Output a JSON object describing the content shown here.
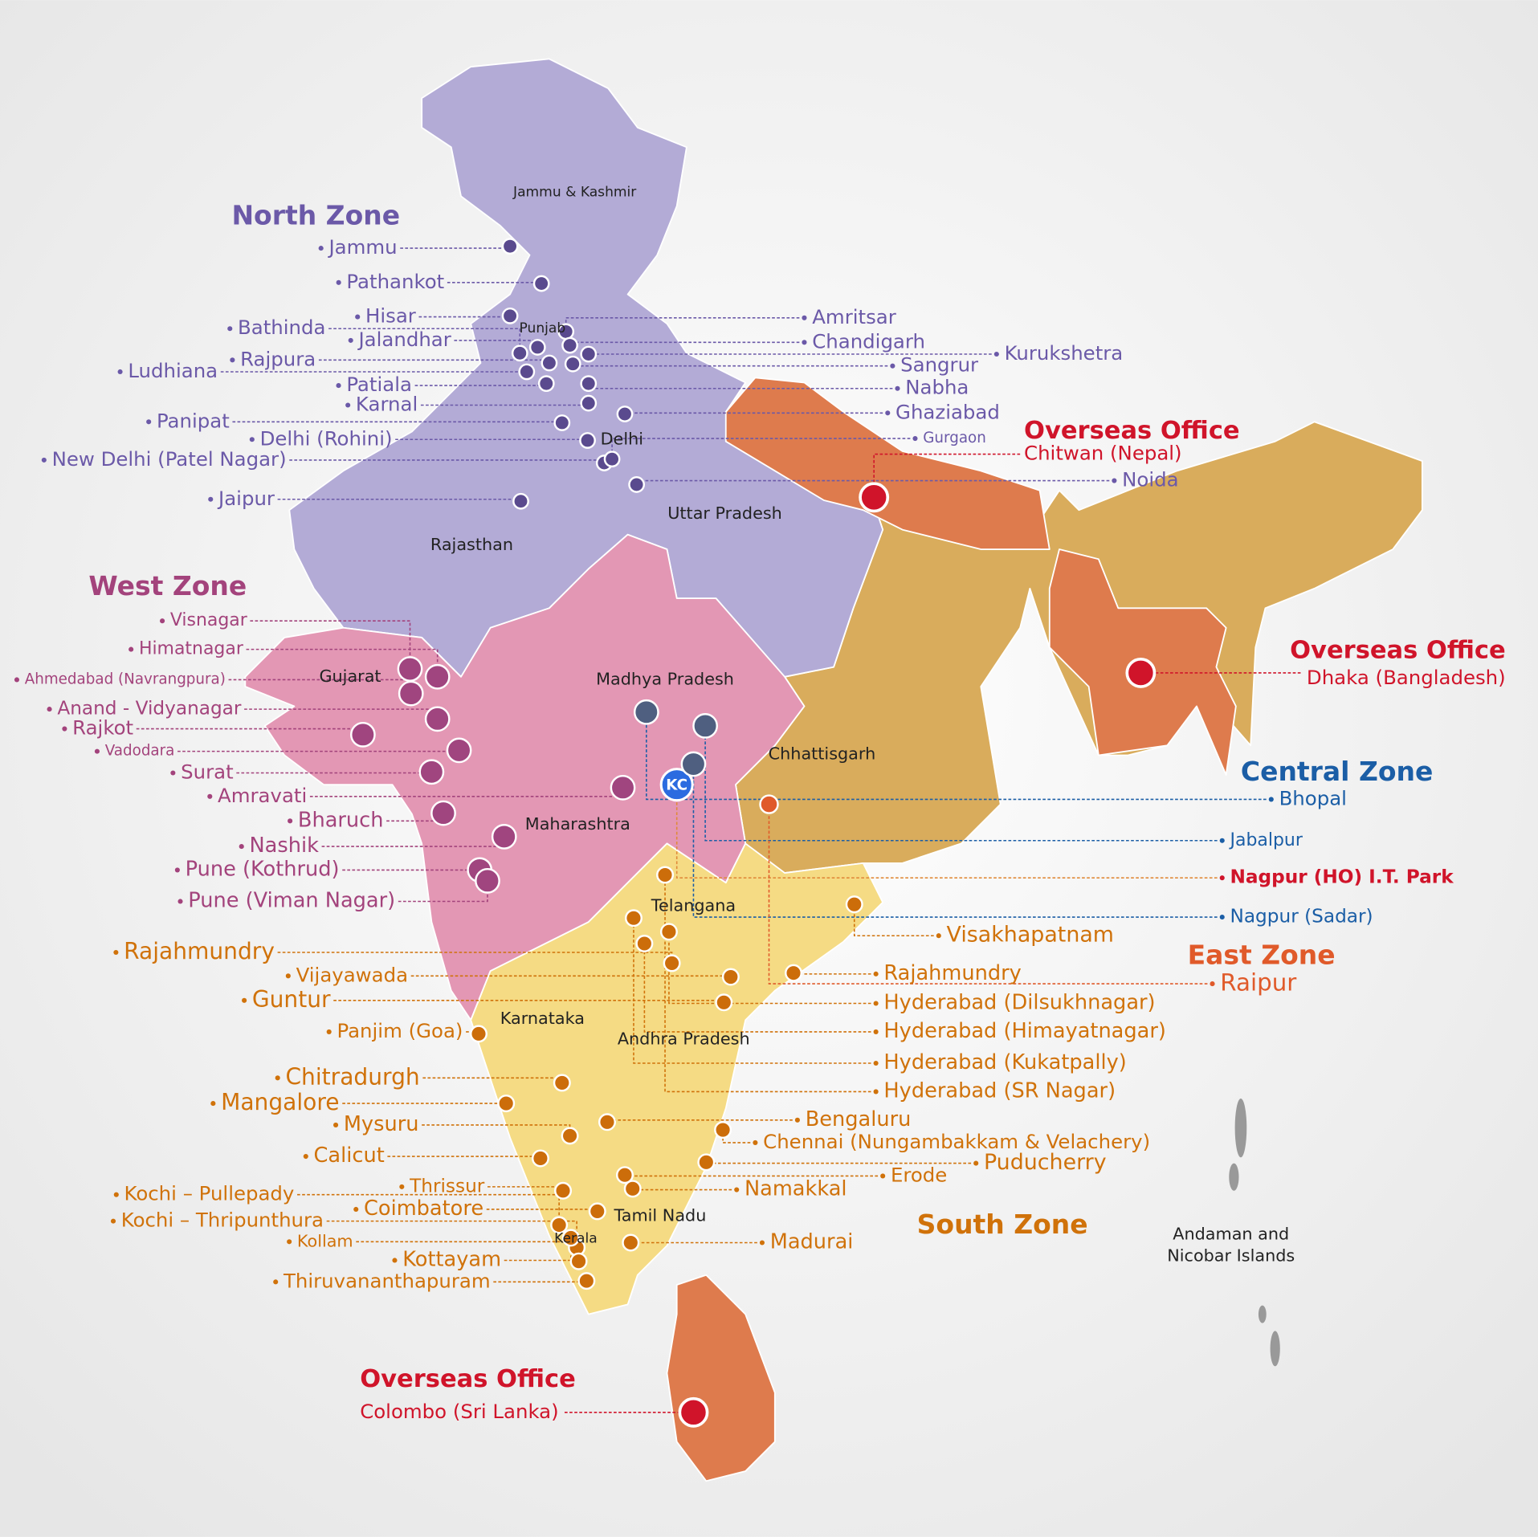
{
  "map": {
    "regions": [
      "Jammu & Kashmir",
      "Punjab",
      "Delhi",
      "Uttar Pradesh",
      "Rajasthan",
      "Gujarat",
      "Madhya Pradesh",
      "Chhattisgarh",
      "Maharashtra",
      "Telangana",
      "Karnataka",
      "Andhra Pradesh",
      "Tamil Nadu",
      "Kerala"
    ],
    "island_label": [
      "Andaman and",
      "Nicobar Islands"
    ],
    "hq_marker": "KC",
    "zones": [
      {
        "title": "North Zone",
        "offices": [
          "Jammu",
          "Pathankot",
          "Hisar",
          "Bathinda",
          "Jalandhar",
          "Rajpura",
          "Ludhiana",
          "Patiala",
          "Karnal",
          "Panipat",
          "Delhi (Rohini)",
          "New Delhi (Patel Nagar)",
          "Jaipur",
          "Amritsar",
          "Chandigarh",
          "Kurukshetra",
          "Sangrur",
          "Nabha",
          "Ghaziabad",
          "Gurgaon",
          "Noida"
        ]
      },
      {
        "title": "West Zone",
        "offices": [
          "Visnagar",
          "Himatnagar",
          "Ahmedabad (Navrangpura)",
          "Anand - Vidyanagar",
          "Rajkot",
          "Vadodara",
          "Surat",
          "Amravati",
          "Bharuch",
          "Nashik",
          "Pune (Kothrud)",
          "Pune (Viman Nagar)"
        ]
      },
      {
        "title": "Central Zone",
        "offices": [
          "Bhopal",
          "Jabalpur",
          "Nagpur (HO) I.T. Park",
          "Nagpur (Sadar)"
        ]
      },
      {
        "title": "East Zone",
        "offices": [
          "Raipur"
        ]
      },
      {
        "title": "South Zone",
        "offices": [
          "Rajahmundry",
          "Vijayawada",
          "Guntur",
          "Panjim (Goa)",
          "Chitradurgh",
          "Mangalore",
          "Mysuru",
          "Calicut",
          "Thrissur",
          "Kochi – Pullepady",
          "Coimbatore",
          "Kochi – Thripunthura",
          "Kollam",
          "Kottayam",
          "Thiruvananthapuram",
          "Visakhapatnam",
          "Rajahmundry",
          "Hyderabad (Dilsukhnagar)",
          "Hyderabad (Himayatnagar)",
          "Hyderabad (Kukatpally)",
          "Hyderabad (SR Nagar)",
          "Bengaluru",
          "Chennai (Nungambakkam & Velachery)",
          "Puducherry",
          "Erode",
          "Namakkal",
          "Madurai"
        ]
      }
    ],
    "overseas": [
      {
        "title": "Overseas Office",
        "office": "Chitwan (Nepal)"
      },
      {
        "title": "Overseas Office",
        "office": "Dhaka (Bangladesh)"
      },
      {
        "title": "Overseas Office",
        "office": "Colombo (Sri Lanka)"
      }
    ]
  }
}
